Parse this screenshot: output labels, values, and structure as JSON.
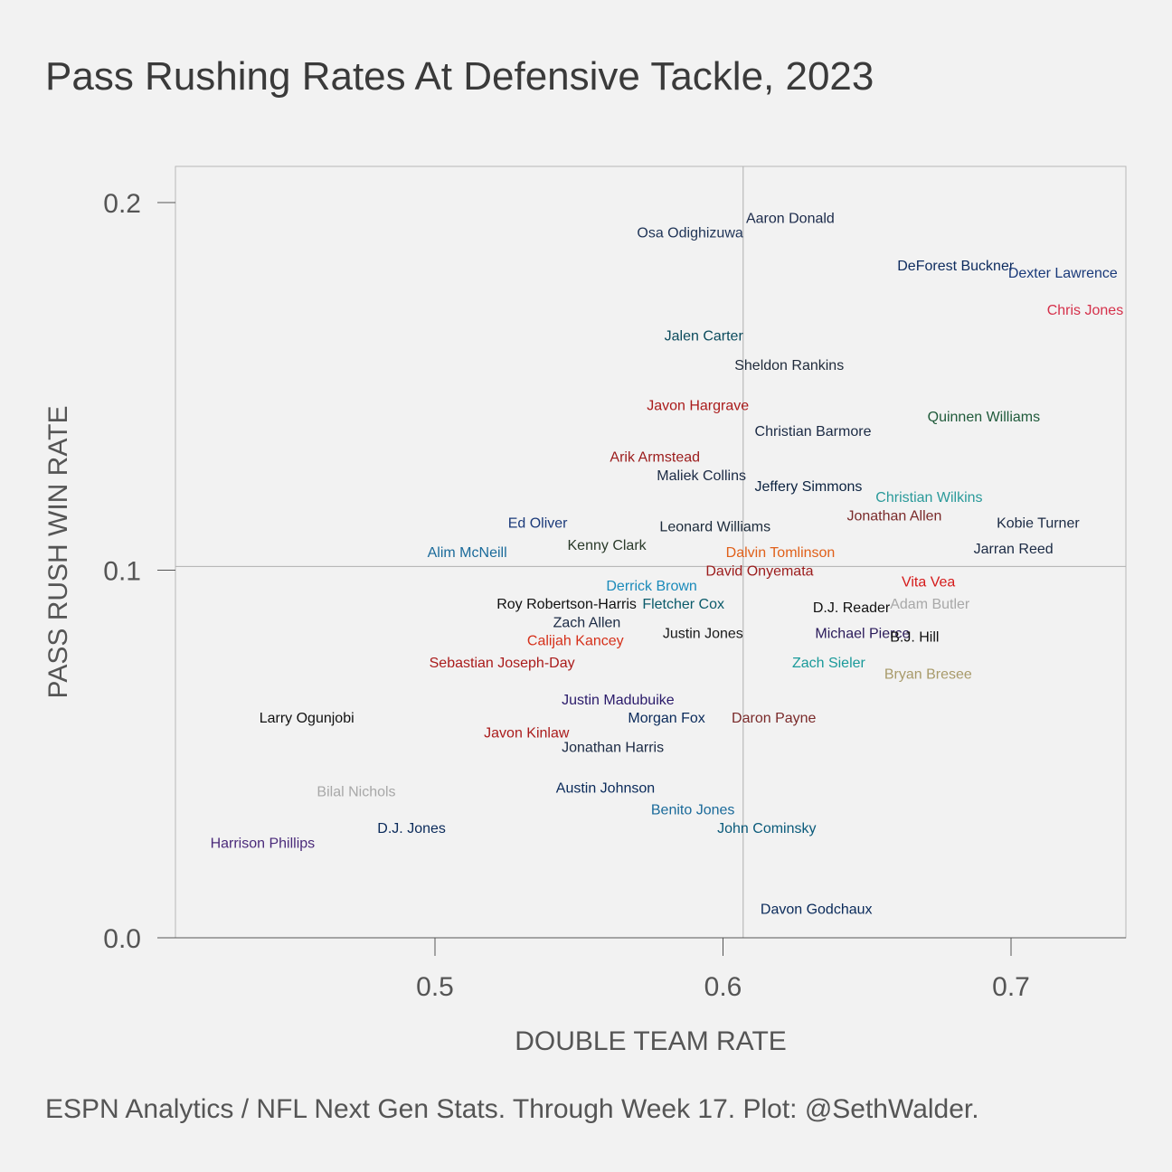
{
  "title": "Pass Rushing Rates At Defensive Tackle, 2023",
  "caption": "ESPN Analytics / NFL Next Gen Stats. Through Week 17. Plot: @SethWalder.",
  "chart_data": {
    "type": "scatter",
    "title": "Pass Rushing Rates At Defensive Tackle, 2023",
    "xlabel": "DOUBLE TEAM RATE",
    "ylabel": "PASS RUSH WIN RATE",
    "xlim": [
      0.41,
      0.74
    ],
    "ylim": [
      0.0,
      0.21
    ],
    "xticks": [
      "0.5",
      "0.6",
      "0.7"
    ],
    "yticks": [
      "0.0",
      "0.1",
      "0.2"
    ],
    "grid": false,
    "reference_lines": {
      "x": 0.607,
      "y": 0.101
    },
    "points": [
      {
        "name": "Aaron Donald",
        "x": 0.608,
        "y": 0.196,
        "color": "#1b2a4a",
        "anchor": "start"
      },
      {
        "name": "Osa Odighizuwa",
        "x": 0.607,
        "y": 0.192,
        "color": "#1e3356",
        "anchor": "end"
      },
      {
        "name": "DeForest Buckner",
        "x": 0.701,
        "y": 0.183,
        "color": "#0d2b5e",
        "anchor": "end"
      },
      {
        "name": "Dexter Lawrence",
        "x": 0.699,
        "y": 0.181,
        "color": "#1a3a7a",
        "anchor": "start"
      },
      {
        "name": "Chris Jones",
        "x": 0.739,
        "y": 0.171,
        "color": "#d5304a",
        "anchor": "end"
      },
      {
        "name": "Jalen Carter",
        "x": 0.607,
        "y": 0.164,
        "color": "#0a4a5c",
        "anchor": "end"
      },
      {
        "name": "Sheldon Rankins",
        "x": 0.604,
        "y": 0.156,
        "color": "#1f2a3a",
        "anchor": "start"
      },
      {
        "name": "Javon Hargrave",
        "x": 0.609,
        "y": 0.145,
        "color": "#aa1b1b",
        "anchor": "end"
      },
      {
        "name": "Quinnen Williams",
        "x": 0.671,
        "y": 0.142,
        "color": "#1f5a3a",
        "anchor": "start"
      },
      {
        "name": "Christian Barmore",
        "x": 0.611,
        "y": 0.138,
        "color": "#1b2a44",
        "anchor": "start"
      },
      {
        "name": "Arik Armstead",
        "x": 0.592,
        "y": 0.131,
        "color": "#9b1b1b",
        "anchor": "end"
      },
      {
        "name": "Maliek Collins",
        "x": 0.608,
        "y": 0.126,
        "color": "#1b2a44",
        "anchor": "end"
      },
      {
        "name": "Jeffery Simmons",
        "x": 0.611,
        "y": 0.123,
        "color": "#0c2340",
        "anchor": "start"
      },
      {
        "name": "Christian Wilkins",
        "x": 0.653,
        "y": 0.12,
        "color": "#2a9a9a",
        "anchor": "start"
      },
      {
        "name": "Jonathan Allen",
        "x": 0.643,
        "y": 0.115,
        "color": "#7a2a2a",
        "anchor": "start"
      },
      {
        "name": "Ed Oliver",
        "x": 0.546,
        "y": 0.113,
        "color": "#1b3a7a",
        "anchor": "end"
      },
      {
        "name": "Kobie Turner",
        "x": 0.695,
        "y": 0.113,
        "color": "#1b2a44",
        "anchor": "start"
      },
      {
        "name": "Leonard Williams",
        "x": 0.578,
        "y": 0.112,
        "color": "#1b2a3a",
        "anchor": "start"
      },
      {
        "name": "Kenny Clark",
        "x": 0.546,
        "y": 0.107,
        "color": "#2a3a2a",
        "anchor": "start"
      },
      {
        "name": "Jarran Reed",
        "x": 0.687,
        "y": 0.106,
        "color": "#1b2a44",
        "anchor": "start"
      },
      {
        "name": "Alim McNeill",
        "x": 0.525,
        "y": 0.105,
        "color": "#1a6a9a",
        "anchor": "end"
      },
      {
        "name": "Dalvin Tomlinson",
        "x": 0.601,
        "y": 0.105,
        "color": "#e0601a",
        "anchor": "start"
      },
      {
        "name": "David Onyemata",
        "x": 0.594,
        "y": 0.1,
        "color": "#9b1b1b",
        "anchor": "start"
      },
      {
        "name": "Derrick Brown",
        "x": 0.591,
        "y": 0.096,
        "color": "#1a8aba",
        "anchor": "end"
      },
      {
        "name": "Vita Vea",
        "x": 0.662,
        "y": 0.097,
        "color": "#d51a1a",
        "anchor": "start"
      },
      {
        "name": "Roy Robertson-Harris",
        "x": 0.57,
        "y": 0.091,
        "color": "#111111",
        "anchor": "end"
      },
      {
        "name": "Fletcher Cox",
        "x": 0.572,
        "y": 0.091,
        "color": "#0a5a6a",
        "anchor": "start"
      },
      {
        "name": "D.J. Reader",
        "x": 0.658,
        "y": 0.09,
        "color": "#111111",
        "anchor": "end"
      },
      {
        "name": "Adam Butler",
        "x": 0.658,
        "y": 0.091,
        "color": "#a8a8a8",
        "anchor": "start"
      },
      {
        "name": "Zach Allen",
        "x": 0.541,
        "y": 0.086,
        "color": "#1b2a44",
        "anchor": "start"
      },
      {
        "name": "Justin Jones",
        "x": 0.607,
        "y": 0.083,
        "color": "#1b1b1b",
        "anchor": "end"
      },
      {
        "name": "Michael Pierce",
        "x": 0.632,
        "y": 0.083,
        "color": "#2a1a5a",
        "anchor": "start"
      },
      {
        "name": "B.J. Hill",
        "x": 0.658,
        "y": 0.082,
        "color": "#111111",
        "anchor": "start"
      },
      {
        "name": "Calijah Kancey",
        "x": 0.532,
        "y": 0.081,
        "color": "#d5301a",
        "anchor": "start"
      },
      {
        "name": "Sebastian Joseph-Day",
        "x": 0.498,
        "y": 0.075,
        "color": "#aa1b1b",
        "anchor": "start"
      },
      {
        "name": "Zach Sieler",
        "x": 0.624,
        "y": 0.075,
        "color": "#1a9a9a",
        "anchor": "start"
      },
      {
        "name": "Bryan Bresee",
        "x": 0.656,
        "y": 0.072,
        "color": "#a89a6a",
        "anchor": "start"
      },
      {
        "name": "Justin Madubuike",
        "x": 0.544,
        "y": 0.065,
        "color": "#2a1a6a",
        "anchor": "start"
      },
      {
        "name": "Larry Ogunjobi",
        "x": 0.439,
        "y": 0.06,
        "color": "#111111",
        "anchor": "start"
      },
      {
        "name": "Morgan Fox",
        "x": 0.567,
        "y": 0.06,
        "color": "#0a2a5a",
        "anchor": "start"
      },
      {
        "name": "Daron Payne",
        "x": 0.603,
        "y": 0.06,
        "color": "#7a2a2a",
        "anchor": "start"
      },
      {
        "name": "Javon Kinlaw",
        "x": 0.517,
        "y": 0.056,
        "color": "#aa1b1b",
        "anchor": "start"
      },
      {
        "name": "Jonathan Harris",
        "x": 0.544,
        "y": 0.052,
        "color": "#1b2a44",
        "anchor": "start"
      },
      {
        "name": "Bilal Nichols",
        "x": 0.459,
        "y": 0.04,
        "color": "#a8a8a8",
        "anchor": "start"
      },
      {
        "name": "Austin Johnson",
        "x": 0.542,
        "y": 0.041,
        "color": "#0a2a5a",
        "anchor": "start"
      },
      {
        "name": "Benito Jones",
        "x": 0.575,
        "y": 0.035,
        "color": "#1a6a9a",
        "anchor": "start"
      },
      {
        "name": "John Cominsky",
        "x": 0.598,
        "y": 0.03,
        "color": "#0a5a7a",
        "anchor": "start"
      },
      {
        "name": "D.J. Jones",
        "x": 0.48,
        "y": 0.03,
        "color": "#0a2a5a",
        "anchor": "start"
      },
      {
        "name": "Harrison Phillips",
        "x": 0.422,
        "y": 0.026,
        "color": "#4a2a7a",
        "anchor": "start"
      },
      {
        "name": "Davon Godchaux",
        "x": 0.613,
        "y": 0.008,
        "color": "#0a2a5a",
        "anchor": "start"
      }
    ]
  }
}
